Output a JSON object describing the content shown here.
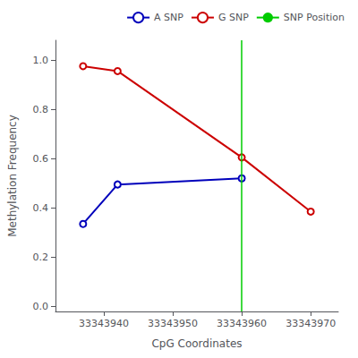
{
  "chart_data": {
    "type": "line",
    "xlabel": "CpG Coordinates",
    "ylabel": "Methylation Frequency",
    "series": [
      {
        "name": "A SNP",
        "color": "#0000bb",
        "marker": "circle",
        "line_style": "solid",
        "x": [
          33343937,
          33343942,
          33343960
        ],
        "values": [
          0.335,
          0.495,
          0.52
        ]
      },
      {
        "name": "G SNP",
        "color": "#cc0000",
        "marker": "circle",
        "line_style": "solid",
        "x": [
          33343937,
          33343942,
          33343960,
          33343970
        ],
        "values": [
          0.975,
          0.955,
          0.605,
          0.385
        ]
      },
      {
        "name": "SNP Position",
        "type": "vline",
        "color": "#00cc00",
        "line_style": "solid",
        "x": [
          33343960
        ]
      }
    ],
    "xlim": [
      33343933,
      33343974
    ],
    "ylim": [
      -0.02,
      1.08
    ],
    "xticks": [
      33343940,
      33343950,
      33343960,
      33343970
    ],
    "yticks": [
      {
        "value": 0.0,
        "label": "0.0"
      },
      0.2,
      0.4,
      0.6,
      0.8,
      {
        "value": 1.0,
        "label": "1.0"
      }
    ],
    "grid": false,
    "legend": "upper right"
  }
}
